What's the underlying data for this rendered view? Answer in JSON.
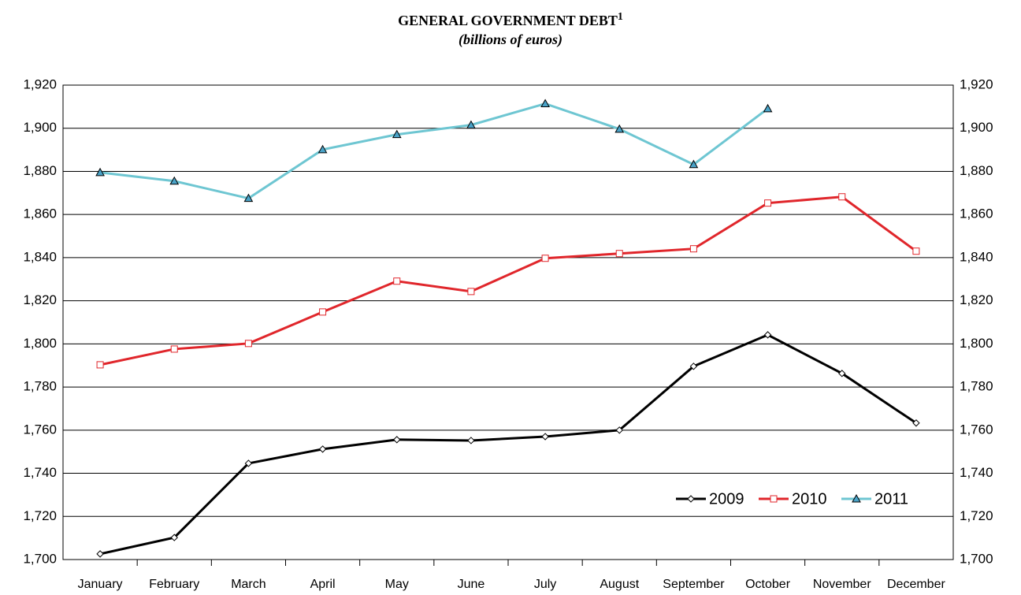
{
  "chart_data": {
    "type": "line",
    "title": "GENERAL GOVERNMENT DEBT",
    "title_note": "1",
    "subtitle": "(billions of euros)",
    "categories": [
      "January",
      "February",
      "March",
      "April",
      "May",
      "June",
      "July",
      "August",
      "September",
      "October",
      "November",
      "December"
    ],
    "series": [
      {
        "name": "2009",
        "color": "#000000",
        "marker": "diamond",
        "marker_fill": "#ffffff",
        "values": [
          1702.6,
          1710.2,
          1744.6,
          1751.2,
          1755.6,
          1755.2,
          1757.0,
          1760.0,
          1789.6,
          1804.2,
          1786.3,
          1763.3
        ]
      },
      {
        "name": "2010",
        "color": "#e0262b",
        "marker": "square",
        "marker_fill": "#ffffff",
        "values": [
          1790.3,
          1797.6,
          1800.2,
          1814.8,
          1829.1,
          1824.3,
          1839.7,
          1841.9,
          1844.1,
          1865.3,
          1868.2,
          1843.0
        ]
      },
      {
        "name": "2011",
        "color": "#6ec6d2",
        "marker": "triangle",
        "marker_fill": "#4aa3c8",
        "values": [
          1879.5,
          1875.5,
          1867.5,
          1890.1,
          1897.1,
          1901.5,
          1911.4,
          1899.6,
          1883.2,
          1909.1,
          null,
          null
        ]
      }
    ],
    "ylim": [
      1700,
      1920
    ],
    "yticks": [
      {
        "value": 1700,
        "label": "1,700"
      },
      {
        "value": 1720,
        "label": "1,720"
      },
      {
        "value": 1740,
        "label": "1,740"
      },
      {
        "value": 1760,
        "label": "1,760"
      },
      {
        "value": 1780,
        "label": "1,780"
      },
      {
        "value": 1800,
        "label": "1,800"
      },
      {
        "value": 1820,
        "label": "1,820"
      },
      {
        "value": 1840,
        "label": "1,840"
      },
      {
        "value": 1860,
        "label": "1,860"
      },
      {
        "value": 1880,
        "label": "1,880"
      },
      {
        "value": 1900,
        "label": "1,900"
      },
      {
        "value": 1920,
        "label": "1,920"
      }
    ],
    "grid": true,
    "legend": "lower right"
  }
}
